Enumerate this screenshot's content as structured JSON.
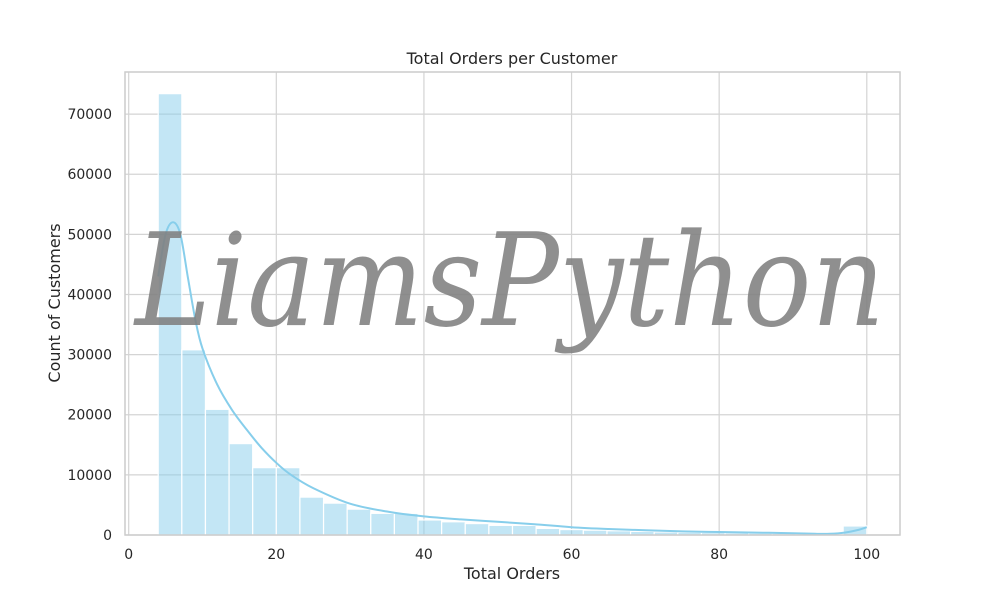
{
  "chart_data": {
    "type": "bar",
    "subtype": "histogram-with-kde",
    "title": "Total Orders per Customer",
    "xlabel": "Total Orders",
    "ylabel": "Count of Customers",
    "xlim": [
      -0.5,
      104.5
    ],
    "ylim": [
      0,
      77000
    ],
    "x_ticks": [
      0,
      20,
      40,
      60,
      80,
      100
    ],
    "y_ticks": [
      0,
      10000,
      20000,
      30000,
      40000,
      50000,
      60000,
      70000
    ],
    "grid": true,
    "color": "#87ceeb",
    "bin_width": 3.2,
    "bins": [
      {
        "x0": 4.0,
        "x1": 7.2,
        "count": 73400
      },
      {
        "x0": 7.2,
        "x1": 10.4,
        "count": 30800
      },
      {
        "x0": 10.4,
        "x1": 13.6,
        "count": 20900
      },
      {
        "x0": 13.6,
        "x1": 16.8,
        "count": 15200
      },
      {
        "x0": 16.8,
        "x1": 20.0,
        "count": 11200
      },
      {
        "x0": 20.0,
        "x1": 23.2,
        "count": 11200
      },
      {
        "x0": 23.2,
        "x1": 26.4,
        "count": 6300
      },
      {
        "x0": 26.4,
        "x1": 29.6,
        "count": 5300
      },
      {
        "x0": 29.6,
        "x1": 32.8,
        "count": 4300
      },
      {
        "x0": 32.8,
        "x1": 36.0,
        "count": 3600
      },
      {
        "x0": 36.0,
        "x1": 39.2,
        "count": 3600
      },
      {
        "x0": 39.2,
        "x1": 42.4,
        "count": 2500
      },
      {
        "x0": 42.4,
        "x1": 45.6,
        "count": 2200
      },
      {
        "x0": 45.6,
        "x1": 48.8,
        "count": 1900
      },
      {
        "x0": 48.8,
        "x1": 52.0,
        "count": 1600
      },
      {
        "x0": 52.0,
        "x1": 55.2,
        "count": 1600
      },
      {
        "x0": 55.2,
        "x1": 58.4,
        "count": 1100
      },
      {
        "x0": 58.4,
        "x1": 61.6,
        "count": 900
      },
      {
        "x0": 61.6,
        "x1": 64.8,
        "count": 800
      },
      {
        "x0": 64.8,
        "x1": 68.0,
        "count": 700
      },
      {
        "x0": 68.0,
        "x1": 71.2,
        "count": 600
      },
      {
        "x0": 71.2,
        "x1": 74.4,
        "count": 500
      },
      {
        "x0": 74.4,
        "x1": 77.6,
        "count": 450
      },
      {
        "x0": 77.6,
        "x1": 80.8,
        "count": 400
      },
      {
        "x0": 80.8,
        "x1": 84.0,
        "count": 350
      },
      {
        "x0": 84.0,
        "x1": 87.2,
        "count": 300
      },
      {
        "x0": 87.2,
        "x1": 90.4,
        "count": 250
      },
      {
        "x0": 90.4,
        "x1": 93.6,
        "count": 200
      },
      {
        "x0": 93.6,
        "x1": 96.8,
        "count": 200
      },
      {
        "x0": 96.8,
        "x1": 100.0,
        "count": 1500
      }
    ],
    "kde": {
      "x": [
        4,
        5,
        6,
        7,
        8,
        9,
        10,
        12,
        14,
        16,
        18,
        20,
        22,
        25,
        30,
        35,
        40,
        45,
        50,
        55,
        60,
        65,
        70,
        75,
        80,
        85,
        90,
        93,
        95,
        97,
        99,
        100
      ],
      "y": [
        43000,
        50000,
        52000,
        50000,
        43000,
        36000,
        31000,
        25000,
        20800,
        17500,
        14500,
        12000,
        10000,
        7800,
        5200,
        3900,
        3100,
        2600,
        2200,
        1800,
        1300,
        1000,
        800,
        600,
        500,
        400,
        300,
        200,
        200,
        400,
        900,
        1300
      ]
    }
  },
  "watermark": {
    "text": "LiamsPython"
  }
}
